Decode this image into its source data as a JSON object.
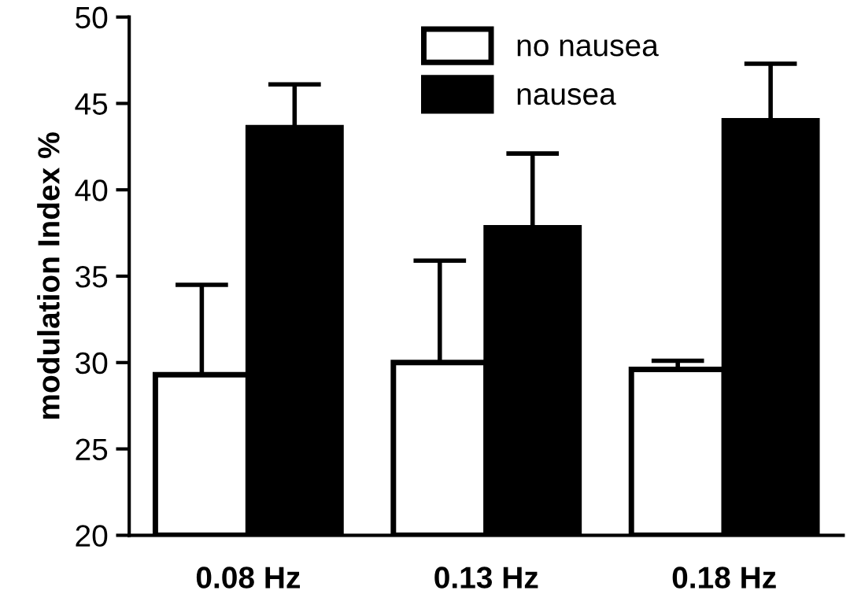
{
  "chart_data": {
    "type": "bar",
    "ylabel": "modulation Index %",
    "categories": [
      "0.08 Hz",
      "0.13 Hz",
      "0.18 Hz"
    ],
    "series": [
      {
        "name": "no nausea",
        "color": "#ffffff",
        "values": [
          29.3,
          30.0,
          29.6
        ],
        "errors": [
          [
            29.3,
            34.5
          ],
          [
            30.0,
            35.9
          ],
          [
            29.6,
            30.1
          ]
        ]
      },
      {
        "name": "nausea",
        "color": "#000000",
        "values": [
          43.6,
          37.8,
          44.0
        ],
        "errors": [
          [
            43.6,
            46.1
          ],
          [
            37.8,
            42.1
          ],
          [
            44.0,
            47.3
          ]
        ]
      }
    ],
    "ylim": [
      20,
      50
    ],
    "yticks": [
      20,
      25,
      30,
      35,
      40,
      45,
      50
    ],
    "grid": false,
    "legend": "top right"
  }
}
